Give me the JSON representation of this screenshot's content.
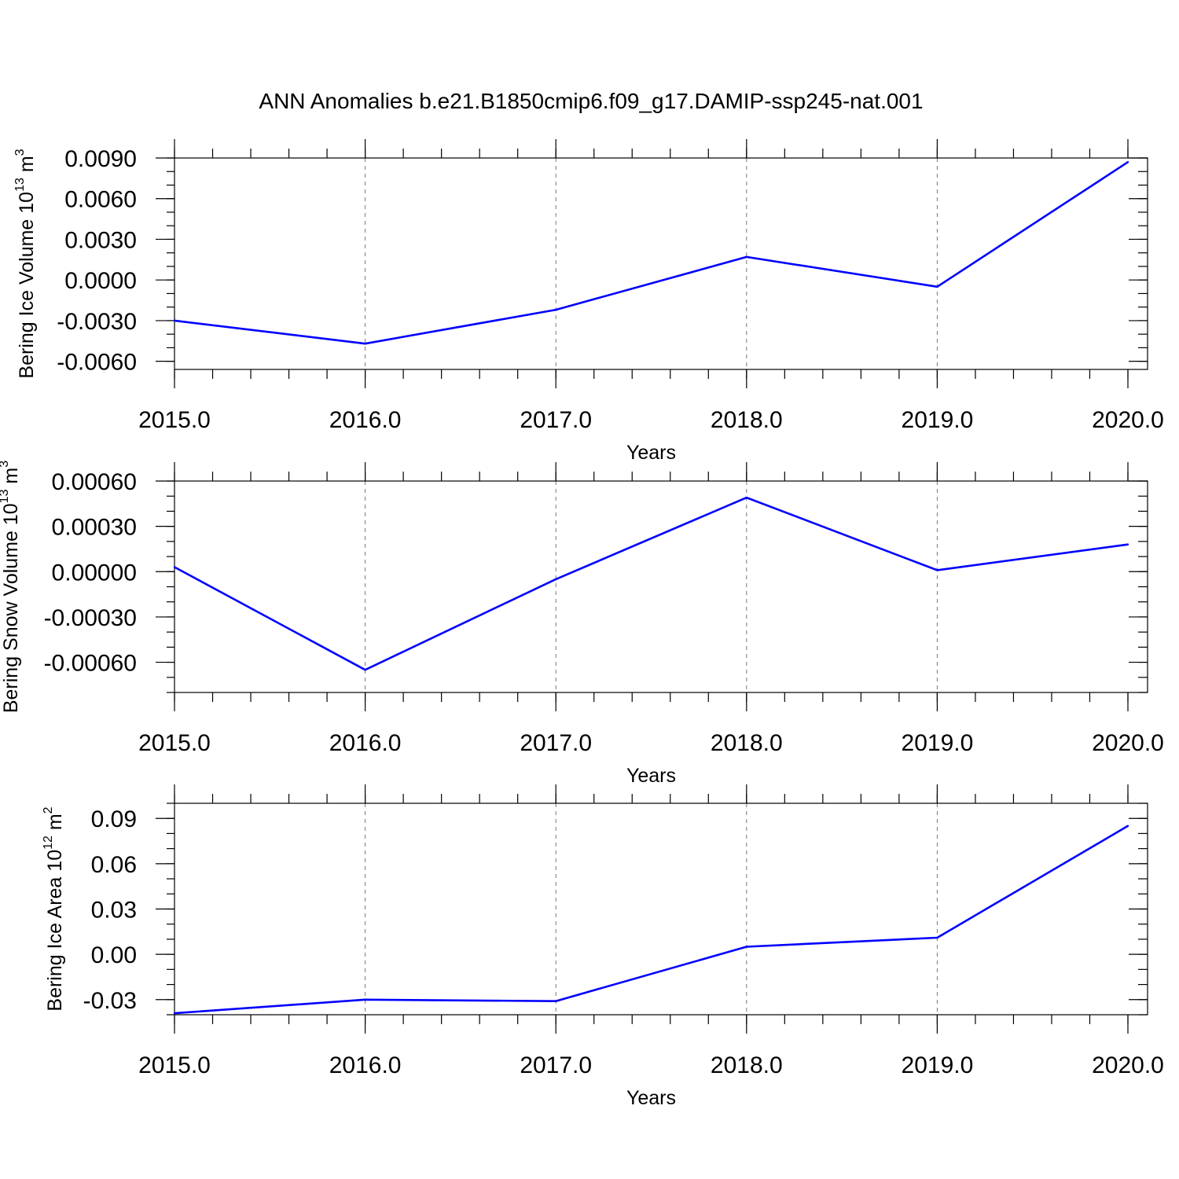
{
  "title": "ANN Anomalies b.e21.B1850cmip6.f09_g17.DAMIP-ssp245-nat.001",
  "chart_data": [
    {
      "type": "line",
      "xlabel": "Years",
      "ylabel": "Bering Ice Volume 10",
      "ylabel_exp": "13",
      "ylabel_unit": " m",
      "ylabel_unit_exp": "3",
      "xlim": [
        2015,
        2020
      ],
      "ylim": [
        -0.0066,
        0.009
      ],
      "x_ticks": [
        2015,
        2016,
        2017,
        2018,
        2019,
        2020
      ],
      "x_tick_labels": [
        "2015.0",
        "2016.0",
        "2017.0",
        "2018.0",
        "2019.0",
        "2020.0"
      ],
      "y_ticks": [
        -0.006,
        -0.003,
        0.0,
        0.003,
        0.006,
        0.009
      ],
      "y_tick_labels": [
        "-0.0060",
        "-0.0030",
        "0.0000",
        "0.0030",
        "0.0060",
        "0.0090"
      ],
      "y_minor_step": 0.001,
      "x_minor_step": 0.2,
      "grid": "x-dashed",
      "line_color": "#0000ff",
      "x": [
        2015,
        2016,
        2017,
        2018,
        2019,
        2020
      ],
      "y": [
        -0.003,
        -0.0047,
        -0.0022,
        0.0017,
        -0.0005,
        0.0087
      ]
    },
    {
      "type": "line",
      "xlabel": "Years",
      "ylabel": "Bering Snow Volume 10",
      "ylabel_exp": "13",
      "ylabel_unit": " m",
      "ylabel_unit_exp": "3",
      "xlim": [
        2015,
        2020
      ],
      "ylim": [
        -0.0008,
        0.0006
      ],
      "x_ticks": [
        2015,
        2016,
        2017,
        2018,
        2019,
        2020
      ],
      "x_tick_labels": [
        "2015.0",
        "2016.0",
        "2017.0",
        "2018.0",
        "2019.0",
        "2020.0"
      ],
      "y_ticks": [
        -0.0006,
        -0.0003,
        0.0,
        0.0003,
        0.0006
      ],
      "y_tick_labels": [
        "-0.00060",
        "-0.00030",
        "0.00000",
        "0.00030",
        "0.00060"
      ],
      "y_minor_step": 0.0001,
      "x_minor_step": 0.2,
      "grid": "x-dashed",
      "line_color": "#0000ff",
      "x": [
        2015,
        2016,
        2017,
        2018,
        2019,
        2020
      ],
      "y": [
        3e-05,
        -0.00065,
        -5e-05,
        0.00049,
        1e-05,
        0.00018
      ]
    },
    {
      "type": "line",
      "xlabel": "Years",
      "ylabel": "Bering Ice Area 10",
      "ylabel_exp": "12",
      "ylabel_unit": " m",
      "ylabel_unit_exp": "2",
      "xlim": [
        2015,
        2020
      ],
      "ylim": [
        -0.04,
        0.1
      ],
      "x_ticks": [
        2015,
        2016,
        2017,
        2018,
        2019,
        2020
      ],
      "x_tick_labels": [
        "2015.0",
        "2016.0",
        "2017.0",
        "2018.0",
        "2019.0",
        "2020.0"
      ],
      "y_ticks": [
        -0.03,
        0.0,
        0.03,
        0.06,
        0.09
      ],
      "y_tick_labels": [
        "-0.03",
        "0.00",
        "0.03",
        "0.06",
        "0.09"
      ],
      "y_minor_step": 0.01,
      "x_minor_step": 0.2,
      "grid": "x-dashed",
      "line_color": "#0000ff",
      "x": [
        2015,
        2016,
        2017,
        2018,
        2019,
        2020
      ],
      "y": [
        -0.039,
        -0.03,
        -0.031,
        0.005,
        0.011,
        0.085
      ]
    }
  ]
}
